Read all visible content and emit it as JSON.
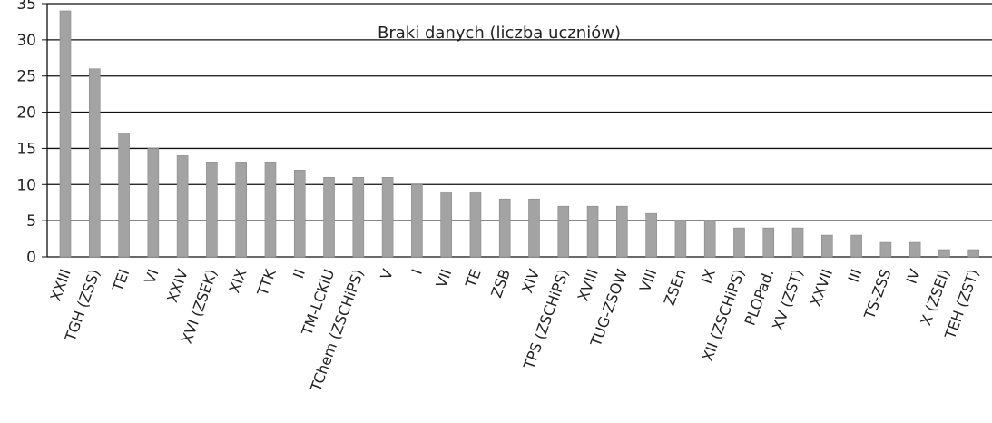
{
  "chart_data": {
    "type": "bar",
    "title": "Braki danych (liczba uczniów)",
    "categories": [
      "XXIII",
      "TGH (ZSS)",
      "TEI",
      "VI",
      "XXIV",
      "XVI (ZSEK)",
      "XIX",
      "TTK",
      "II",
      "TM-LCKiU",
      "TChem (ZSCHiPS)",
      "V",
      "I",
      "VII",
      "TE",
      "ZSB",
      "XIV",
      "TPS (ZSCHiPS)",
      "XVIII",
      "TUG-ZSOW",
      "VIII",
      "ZSEn",
      "IX",
      "XII (ZSCHiPS)",
      "PLOPad.",
      "XV (ZST)",
      "XXVII",
      "III",
      "TS-ZSS",
      "IV",
      "X (ZSEI)",
      "TEH (ZST)"
    ],
    "values": [
      34,
      26,
      17,
      15,
      14,
      13,
      13,
      13,
      12,
      11,
      11,
      11,
      10,
      9,
      9,
      8,
      8,
      7,
      7,
      7,
      6,
      5,
      5,
      4,
      4,
      4,
      3,
      3,
      2,
      2,
      1,
      1
    ],
    "color": "#a3a3a3",
    "ylim": [
      0,
      35
    ],
    "yticks": [
      0,
      5,
      10,
      15,
      20,
      25,
      30,
      35
    ],
    "grid": true
  }
}
